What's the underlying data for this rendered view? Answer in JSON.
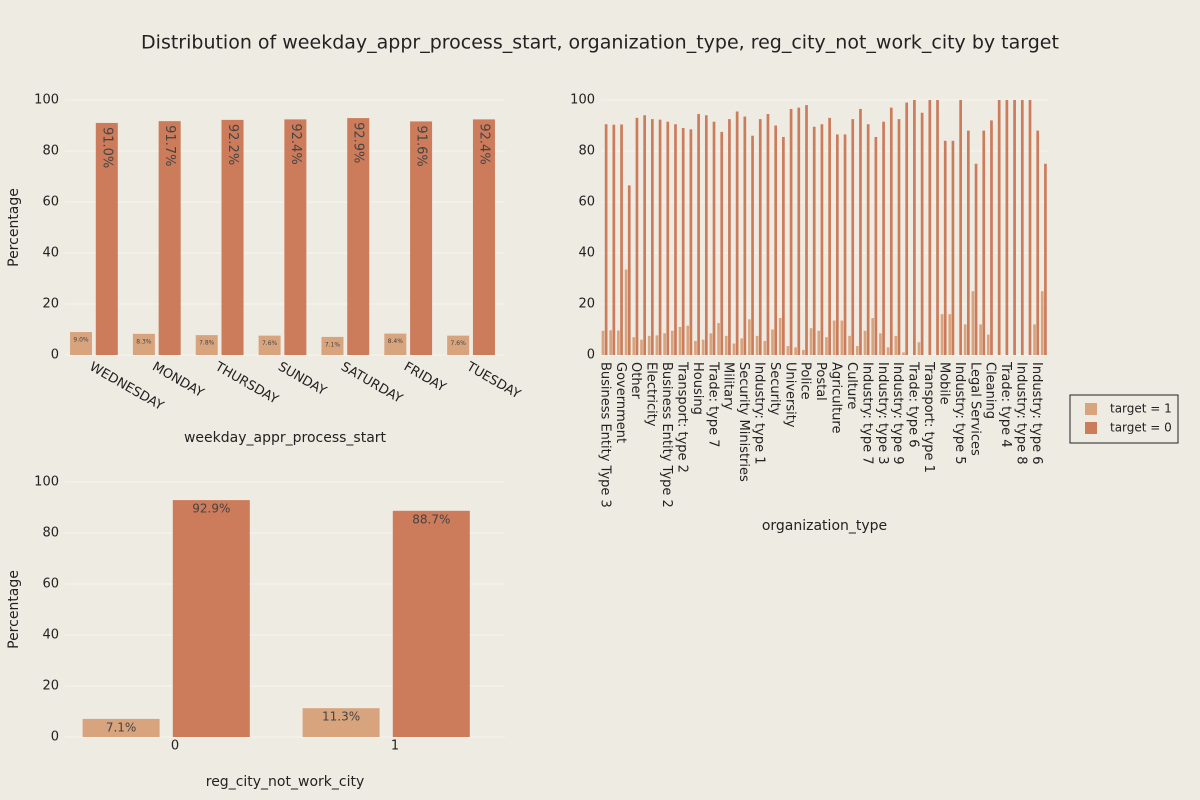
{
  "title": "Distribution of weekday_appr_process_start, organization_type, reg_city_not_work_city by target",
  "legend": "right",
  "chart_data": [
    {
      "type": "bar",
      "x_label": "weekday_appr_process_start",
      "y_label": "Percentage",
      "categories": [
        "WEDNESDAY",
        "MONDAY",
        "THURSDAY",
        "SUNDAY",
        "SATURDAY",
        "FRIDAY",
        "TUESDAY"
      ],
      "series": [
        {
          "name": "target = 1",
          "color": "#d8a47e",
          "values": [
            9.0,
            8.3,
            7.8,
            7.6,
            7.1,
            8.4,
            7.6
          ],
          "value_labels": [
            "9.0%",
            "8.3%",
            "7.8%",
            "7.6%",
            "7.1%",
            "8.4%",
            "7.6%"
          ]
        },
        {
          "name": "target = 0",
          "color": "#cc7b5b",
          "values": [
            91.0,
            91.7,
            92.2,
            92.4,
            92.9,
            91.6,
            92.4
          ],
          "value_labels": [
            "91.0%",
            "91.7%",
            "92.2%",
            "92.4%",
            "92.9%",
            "91.6%",
            "92.4%"
          ]
        }
      ],
      "ylim": [
        0,
        100
      ],
      "yticks": [
        0,
        20,
        40,
        60,
        80,
        100
      ],
      "grid": true
    },
    {
      "type": "bar",
      "x_label": "organization_type",
      "categories": [
        "Business Entity Type 3",
        null,
        "Government",
        null,
        "Other",
        null,
        "Electricity",
        null,
        "Business Entity Type 2",
        null,
        "Transport: type 2",
        null,
        "Housing",
        null,
        "Trade: type 7",
        null,
        "Military",
        null,
        "Security Ministries",
        null,
        "Industry: type 1",
        null,
        "Security",
        null,
        "University",
        null,
        "Police",
        null,
        "Postal",
        null,
        "Agriculture",
        null,
        "Culture",
        null,
        "Industry: type 7",
        null,
        "Industry: type 3",
        null,
        "Industry: type 9",
        null,
        "Trade: type 6",
        null,
        "Transport: type 1",
        null,
        "Mobile",
        null,
        "Industry: type 5",
        null,
        "Legal Services",
        null,
        "Cleaning",
        null,
        "Trade: type 4",
        null,
        "Industry: type 8",
        null,
        "Industry: type 6",
        null
      ],
      "series": [
        {
          "name": "target = 1",
          "color": "#d8a47e",
          "values": [
            9.5,
            9.7,
            9.6,
            33.5,
            7,
            6,
            7.5,
            7.7,
            8.5,
            9.5,
            11,
            11.5,
            5.5,
            6,
            8.5,
            12.5,
            7.5,
            4.5,
            6.5,
            14,
            7.5,
            5.5,
            10,
            14.5,
            3.5,
            3,
            2,
            10.5,
            9.5,
            7,
            13.5,
            13.5,
            7.5,
            3.5,
            9.5,
            14.5,
            8.5,
            3,
            7.5,
            1,
            0,
            5,
            0,
            0,
            16,
            16,
            0,
            12,
            25,
            12,
            8,
            0,
            0,
            0,
            0,
            0,
            12,
            25
          ]
        },
        {
          "name": "target = 0",
          "color": "#cc7b5b",
          "values": [
            90.5,
            90.3,
            90.4,
            66.5,
            93,
            94,
            92.5,
            92.3,
            91.5,
            90.5,
            89,
            88.5,
            94.5,
            94,
            91.5,
            87.5,
            92.5,
            95.5,
            93.5,
            86,
            92.5,
            94.5,
            90,
            85.5,
            96.5,
            97,
            98,
            89.5,
            90.5,
            93,
            86.5,
            86.5,
            92.5,
            96.5,
            90.5,
            85.5,
            91.5,
            97,
            92.5,
            99,
            100,
            95,
            100,
            100,
            84,
            84,
            100,
            88,
            75,
            88,
            92,
            100,
            100,
            100,
            100,
            100,
            88,
            75
          ]
        }
      ],
      "ylim": [
        0,
        100
      ],
      "yticks": [
        0,
        20,
        40,
        60,
        80,
        100
      ],
      "grid": true
    },
    {
      "type": "bar",
      "x_label": "reg_city_not_work_city",
      "y_label": "Percentage",
      "categories": [
        "0",
        "1"
      ],
      "series": [
        {
          "name": "target = 1",
          "color": "#d8a47e",
          "values": [
            7.1,
            11.3
          ],
          "value_labels": [
            "7.1%",
            "11.3%"
          ]
        },
        {
          "name": "target = 0",
          "color": "#cc7b5b",
          "values": [
            92.9,
            88.7
          ],
          "value_labels": [
            "92.9%",
            "88.7%"
          ]
        }
      ],
      "ylim": [
        0,
        100
      ],
      "yticks": [
        0,
        20,
        40,
        60,
        80,
        100
      ],
      "grid": true
    }
  ]
}
